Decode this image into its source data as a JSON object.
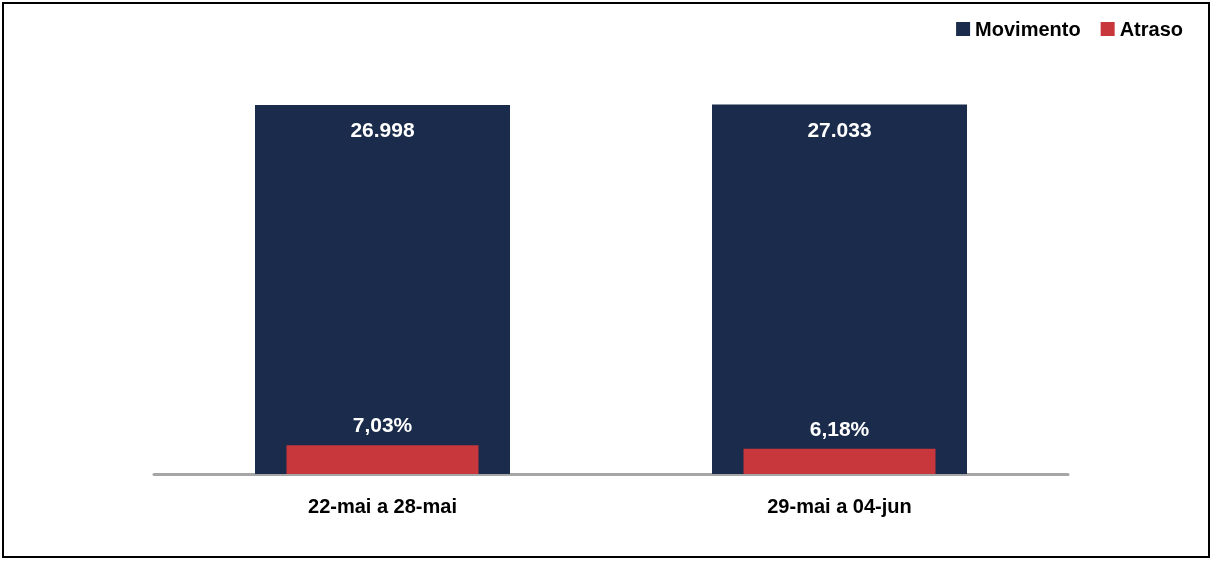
{
  "chart_data": {
    "type": "bar",
    "categories": [
      "22-mai a 28-mai",
      "29-mai a 04-jun"
    ],
    "series": [
      {
        "name": "Movimento",
        "color": "#1b2b4b",
        "values": [
          26998,
          27033
        ],
        "value_labels": [
          "26.998",
          "27.033"
        ]
      },
      {
        "name": "Atraso",
        "color": "#c8373b",
        "values": [
          7.03,
          6.18
        ],
        "value_labels": [
          "7,03%",
          "6,18%"
        ],
        "axis": "y2"
      }
    ],
    "tick_labels": "x",
    "legend": "top right"
  }
}
